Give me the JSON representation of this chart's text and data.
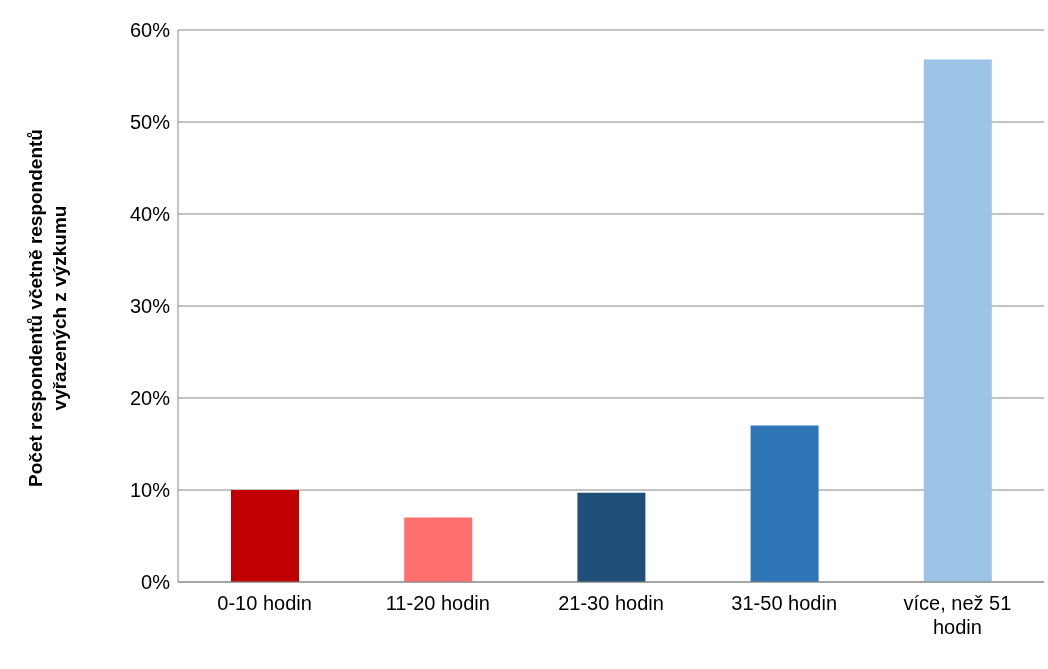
{
  "chart_data": {
    "type": "bar",
    "ylabel": "Počet respondentů včetně respondentů vyřazených z výzkumu",
    "categories": [
      "0-10 hodin",
      "11-20 hodin",
      "21-30 hodin",
      "31-50 hodin",
      "více, než 51 hodin"
    ],
    "values": [
      10,
      7,
      9.7,
      17,
      56.8
    ],
    "colors": [
      "#c00000",
      "#ff6f6f",
      "#1f4e79",
      "#2e75b6",
      "#9dc3e6"
    ],
    "ylim": [
      0,
      60
    ],
    "yticks": [
      {
        "value": 0,
        "label": "0%"
      },
      {
        "value": 10,
        "label": "10%"
      },
      {
        "value": 20,
        "label": "20%"
      },
      {
        "value": 30,
        "label": "30%"
      },
      {
        "value": 40,
        "label": "40%"
      },
      {
        "value": 50,
        "label": "50%"
      },
      {
        "value": 60,
        "label": "60%"
      }
    ],
    "grid": "y",
    "legend": false
  }
}
